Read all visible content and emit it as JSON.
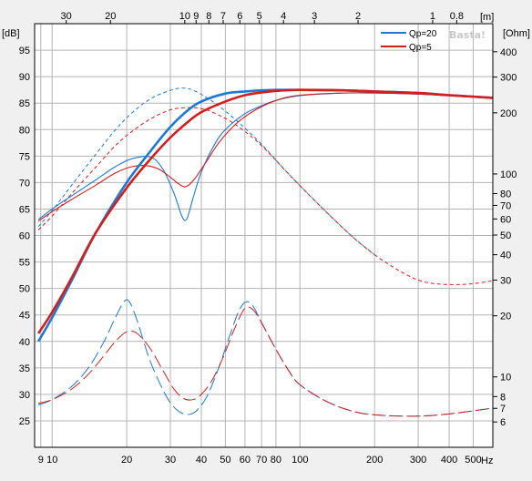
{
  "chart_data": {
    "type": "line",
    "watermark": "Basta!",
    "x_axis": {
      "label": "Hz",
      "scale": "log",
      "range": [
        8.5,
        600
      ],
      "ticks": [
        {
          "v": 9,
          "t": "9"
        },
        {
          "v": 10,
          "t": "10"
        },
        {
          "v": 20,
          "t": "20"
        },
        {
          "v": 30,
          "t": "30"
        },
        {
          "v": 40,
          "t": "40"
        },
        {
          "v": 50,
          "t": "50"
        },
        {
          "v": 60,
          "t": "60"
        },
        {
          "v": 70,
          "t": "70"
        },
        {
          "v": 80,
          "t": "80"
        },
        {
          "v": 100,
          "t": "100"
        },
        {
          "v": 200,
          "t": "200"
        },
        {
          "v": 300,
          "t": "300"
        },
        {
          "v": 400,
          "t": "400"
        },
        {
          "v": 500,
          "t": "500"
        }
      ]
    },
    "top_axis": {
      "label": "[m]",
      "ticks": [
        {
          "hz": 11.4,
          "t": "30"
        },
        {
          "hz": 17.2,
          "t": "20"
        },
        {
          "hz": 34.3,
          "t": "10"
        },
        {
          "hz": 38.1,
          "t": "9"
        },
        {
          "hz": 42.9,
          "t": "8"
        },
        {
          "hz": 49.0,
          "t": "7"
        },
        {
          "hz": 57.2,
          "t": "6"
        },
        {
          "hz": 68.6,
          "t": "5"
        },
        {
          "hz": 85.8,
          "t": "4"
        },
        {
          "hz": 114.4,
          "t": "3"
        },
        {
          "hz": 171.5,
          "t": "2"
        },
        {
          "hz": 343,
          "t": "1"
        },
        {
          "hz": 429,
          "t": "0.8"
        }
      ]
    },
    "y_axis": {
      "label": "[dB]",
      "range": [
        20,
        100
      ],
      "ticks": [
        25,
        30,
        35,
        40,
        45,
        50,
        55,
        60,
        65,
        70,
        75,
        80,
        85,
        90,
        95
      ]
    },
    "y2_axis": {
      "label": "[Ohm]",
      "scale": "log",
      "range": [
        4.5,
        550
      ],
      "ticks": [
        6,
        7,
        8,
        10,
        20,
        30,
        40,
        50,
        60,
        70,
        80,
        100,
        200,
        300,
        400
      ]
    },
    "legend": {
      "position": "top-right",
      "entries": [
        {
          "name": "Qp=20",
          "color": "#1f78d1"
        },
        {
          "name": "Qp=5",
          "color": "#d11f1f"
        }
      ]
    },
    "series": [
      {
        "name": "Qp=20",
        "kind": "spl_total",
        "axis": "dB",
        "color": "#1f78d1",
        "style": "solid-thick",
        "points": [
          [
            8.8,
            40.0
          ],
          [
            10,
            44.5
          ],
          [
            12,
            51.5
          ],
          [
            15,
            60.5
          ],
          [
            20,
            70.0
          ],
          [
            25,
            76.0
          ],
          [
            30,
            80.5
          ],
          [
            35,
            83.5
          ],
          [
            40,
            85.3
          ],
          [
            50,
            86.8
          ],
          [
            60,
            87.2
          ],
          [
            70,
            87.4
          ],
          [
            80,
            87.5
          ],
          [
            100,
            87.5
          ],
          [
            150,
            87.4
          ],
          [
            200,
            87.2
          ],
          [
            300,
            86.9
          ],
          [
            400,
            86.5
          ],
          [
            600,
            86.0
          ]
        ]
      },
      {
        "name": "Qp=5",
        "kind": "spl_total",
        "axis": "dB",
        "color": "#d11f1f",
        "style": "solid-thick",
        "points": [
          [
            8.8,
            41.5
          ],
          [
            10,
            45.5
          ],
          [
            12,
            52.0
          ],
          [
            15,
            60.5
          ],
          [
            20,
            69.0
          ],
          [
            25,
            74.5
          ],
          [
            30,
            78.5
          ],
          [
            35,
            81.3
          ],
          [
            40,
            83.3
          ],
          [
            50,
            85.3
          ],
          [
            60,
            86.5
          ],
          [
            70,
            87.0
          ],
          [
            80,
            87.3
          ],
          [
            100,
            87.5
          ],
          [
            150,
            87.4
          ],
          [
            200,
            87.2
          ],
          [
            300,
            86.9
          ],
          [
            400,
            86.5
          ],
          [
            600,
            86.0
          ]
        ]
      },
      {
        "name": "Qp=20",
        "kind": "spl_front",
        "axis": "dB",
        "color": "#1f78d1",
        "style": "solid-thin",
        "points": [
          [
            8.8,
            63.0
          ],
          [
            10,
            65.0
          ],
          [
            12,
            67.5
          ],
          [
            15,
            70.5
          ],
          [
            18,
            73.0
          ],
          [
            21,
            74.5
          ],
          [
            25,
            74.8
          ],
          [
            28,
            72.5
          ],
          [
            31,
            68.0
          ],
          [
            33.5,
            63.5
          ],
          [
            35,
            63.2
          ],
          [
            37,
            67.0
          ],
          [
            40,
            72.0
          ],
          [
            45,
            77.0
          ],
          [
            50,
            80.0
          ],
          [
            60,
            83.0
          ],
          [
            70,
            84.5
          ],
          [
            80,
            85.5
          ],
          [
            100,
            86.4
          ],
          [
            150,
            86.9
          ],
          [
            200,
            86.9
          ],
          [
            300,
            86.7
          ],
          [
            400,
            86.4
          ],
          [
            600,
            86.0
          ]
        ]
      },
      {
        "name": "Qp=5",
        "kind": "spl_front",
        "axis": "dB",
        "color": "#d11f1f",
        "style": "solid-thin",
        "points": [
          [
            8.8,
            62.7
          ],
          [
            10,
            64.5
          ],
          [
            12,
            66.8
          ],
          [
            15,
            69.5
          ],
          [
            18,
            71.8
          ],
          [
            21,
            73.0
          ],
          [
            24,
            73.2
          ],
          [
            27,
            72.5
          ],
          [
            30,
            71.0
          ],
          [
            33,
            69.5
          ],
          [
            35,
            69.3
          ],
          [
            38,
            71.0
          ],
          [
            42,
            74.0
          ],
          [
            47,
            77.5
          ],
          [
            55,
            81.0
          ],
          [
            65,
            83.5
          ],
          [
            80,
            85.5
          ],
          [
            100,
            86.5
          ],
          [
            150,
            86.9
          ],
          [
            200,
            86.9
          ],
          [
            300,
            86.7
          ],
          [
            400,
            86.4
          ],
          [
            600,
            86.0
          ]
        ]
      },
      {
        "name": "Qp=20",
        "kind": "impedance",
        "axis": "Ohm",
        "color": "#1f78d1",
        "style": "dashed-short",
        "points": [
          [
            8.8,
            55
          ],
          [
            10,
            66
          ],
          [
            12,
            88
          ],
          [
            15,
            125
          ],
          [
            18,
            165
          ],
          [
            21,
            200
          ],
          [
            25,
            235
          ],
          [
            30,
            258
          ],
          [
            34,
            265
          ],
          [
            38,
            255
          ],
          [
            45,
            225
          ],
          [
            55,
            185
          ],
          [
            70,
            140
          ],
          [
            90,
            100
          ],
          [
            120,
            70
          ],
          [
            160,
            50
          ],
          [
            200,
            40
          ]
        ]
      },
      {
        "name": "Qp=5",
        "kind": "impedance",
        "axis": "Ohm",
        "color": "#d11f1f",
        "style": "dashed-short",
        "points": [
          [
            8.8,
            53
          ],
          [
            10,
            62
          ],
          [
            12,
            80
          ],
          [
            15,
            108
          ],
          [
            18,
            138
          ],
          [
            21,
            162
          ],
          [
            25,
            187
          ],
          [
            30,
            207
          ],
          [
            35,
            212
          ],
          [
            40,
            210
          ],
          [
            45,
            200
          ],
          [
            55,
            175
          ],
          [
            70,
            138
          ],
          [
            90,
            100
          ],
          [
            120,
            70
          ],
          [
            160,
            50
          ],
          [
            200,
            40
          ],
          [
            250,
            33.5
          ],
          [
            300,
            30
          ],
          [
            350,
            28.8
          ],
          [
            420,
            28.5
          ],
          [
            500,
            28.8
          ],
          [
            600,
            29.8
          ]
        ]
      },
      {
        "name": "Qp=20",
        "kind": "port_spl",
        "axis": "dB",
        "color": "#1f78d1",
        "style": "dashed-long",
        "points": [
          [
            8.8,
            28.0
          ],
          [
            10,
            29.0
          ],
          [
            12,
            31.5
          ],
          [
            14,
            35.0
          ],
          [
            16,
            39.5
          ],
          [
            18,
            44.5
          ],
          [
            19.5,
            47.5
          ],
          [
            20.5,
            47.5
          ],
          [
            22,
            44.0
          ],
          [
            25,
            36.0
          ],
          [
            29,
            29.5
          ],
          [
            32,
            27.0
          ],
          [
            35,
            26.2
          ],
          [
            38,
            26.8
          ],
          [
            42,
            29.5
          ],
          [
            47,
            35.0
          ],
          [
            52,
            41.0
          ],
          [
            57,
            46.0
          ],
          [
            61,
            47.5
          ],
          [
            65,
            46.5
          ],
          [
            70,
            43.5
          ],
          [
            80,
            38.5
          ],
          [
            90,
            34.5
          ],
          [
            100,
            31.8
          ],
          [
            130,
            28.5
          ],
          [
            170,
            26.6
          ],
          [
            220,
            26.0
          ],
          [
            300,
            25.9
          ],
          [
            400,
            26.3
          ],
          [
            600,
            27.4
          ]
        ]
      },
      {
        "name": "Qp=5",
        "kind": "port_spl",
        "axis": "dB",
        "color": "#d11f1f",
        "style": "dashed-long",
        "points": [
          [
            8.8,
            28.3
          ],
          [
            10,
            29.0
          ],
          [
            12,
            31.0
          ],
          [
            14,
            33.8
          ],
          [
            16,
            37.0
          ],
          [
            18,
            40.0
          ],
          [
            20,
            41.8
          ],
          [
            22,
            41.5
          ],
          [
            25,
            38.5
          ],
          [
            28,
            34.5
          ],
          [
            31,
            31.0
          ],
          [
            34,
            29.2
          ],
          [
            37,
            29.0
          ],
          [
            40,
            30.0
          ],
          [
            44,
            32.5
          ],
          [
            49,
            37.0
          ],
          [
            54,
            42.0
          ],
          [
            59,
            45.8
          ],
          [
            62,
            46.5
          ],
          [
            66,
            45.5
          ],
          [
            72,
            42.5
          ],
          [
            80,
            38.5
          ],
          [
            90,
            34.5
          ],
          [
            100,
            31.8
          ],
          [
            130,
            28.5
          ],
          [
            170,
            26.6
          ],
          [
            220,
            26.0
          ],
          [
            300,
            25.9
          ],
          [
            400,
            26.3
          ],
          [
            600,
            27.4
          ]
        ]
      }
    ]
  }
}
